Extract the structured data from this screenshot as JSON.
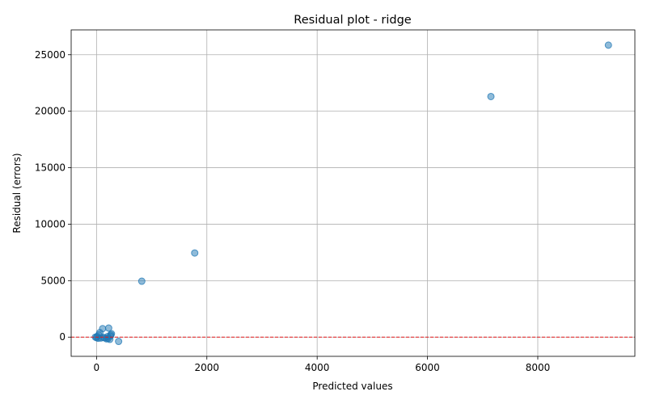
{
  "chart_data": {
    "type": "scatter",
    "title": "Residual plot - ridge",
    "xlabel": "Predicted values",
    "ylabel": "Residual (errors)",
    "xlim": [
      -460,
      9760
    ],
    "ylim": [
      -1700,
      27200
    ],
    "xticks": [
      0,
      2000,
      4000,
      6000,
      8000
    ],
    "yticks": [
      0,
      5000,
      10000,
      15000,
      20000,
      25000
    ],
    "grid": true,
    "point_color": "#1f77b4",
    "point_alpha": 0.5,
    "reference_line": {
      "y": 0,
      "color": "#e31a1c",
      "style": "dashed"
    },
    "points": [
      {
        "x": 9280,
        "y": 25850
      },
      {
        "x": 7150,
        "y": 21300
      },
      {
        "x": 1780,
        "y": 7450
      },
      {
        "x": 820,
        "y": 4950
      },
      {
        "x": 220,
        "y": 800
      },
      {
        "x": 110,
        "y": 750
      },
      {
        "x": 60,
        "y": 400
      },
      {
        "x": 40,
        "y": 200
      },
      {
        "x": 10,
        "y": 50
      },
      {
        "x": -20,
        "y": 0
      },
      {
        "x": 0,
        "y": -50
      },
      {
        "x": 30,
        "y": -100
      },
      {
        "x": 80,
        "y": -80
      },
      {
        "x": 150,
        "y": -60
      },
      {
        "x": 180,
        "y": -150
      },
      {
        "x": 210,
        "y": -120
      },
      {
        "x": 240,
        "y": -200
      },
      {
        "x": 260,
        "y": 200
      },
      {
        "x": 270,
        "y": 300
      },
      {
        "x": 250,
        "y": 100
      },
      {
        "x": 400,
        "y": -380
      },
      {
        "x": 120,
        "y": -30
      },
      {
        "x": 200,
        "y": 50
      }
    ]
  }
}
